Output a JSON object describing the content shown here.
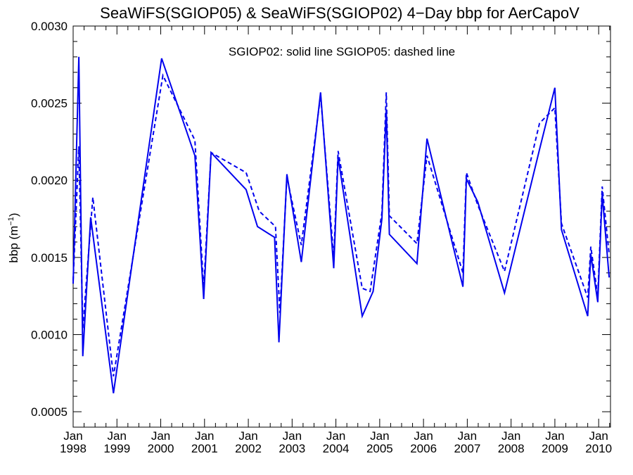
{
  "chart_data": {
    "type": "line",
    "title": "SeaWiFS(SGIOP05) & SeaWiFS(SGIOP02) 4−Day bbp for AerCapoV",
    "ylabel_main": "bbp (m",
    "ylabel_sup": "−1",
    "ylabel_close": ")",
    "annotation": "SGIOP02: solid line   SGIOP05: dashed line",
    "xlim": [
      1998.0,
      2010.27
    ],
    "ylim": [
      0.0004,
      0.003
    ],
    "yticks": [
      0.0005,
      0.001,
      0.0015,
      0.002,
      0.0025,
      0.003
    ],
    "ytick_labels": [
      "0.0005",
      "0.0010",
      "0.0015",
      "0.0020",
      "0.0025",
      "0.0030"
    ],
    "xticks": [
      1998,
      1999,
      2000,
      2001,
      2002,
      2003,
      2004,
      2005,
      2006,
      2007,
      2008,
      2009,
      2010
    ],
    "xtick_month": "Jan",
    "xtick_years": [
      "1998",
      "1999",
      "2000",
      "2001",
      "2002",
      "2003",
      "2004",
      "2005",
      "2006",
      "2007",
      "2008",
      "2009",
      "2010"
    ],
    "grid": false,
    "series": [
      {
        "style": "solid",
        "color": "#0000ee",
        "points": [
          [
            1998.0,
            0.00133
          ],
          [
            1998.13,
            0.0028
          ],
          [
            1998.22,
            0.00086
          ],
          [
            1998.4,
            0.00176
          ],
          [
            1998.92,
            0.00062
          ],
          [
            2000.02,
            0.00279
          ],
          [
            2000.78,
            0.00216
          ],
          [
            2000.98,
            0.00123
          ],
          [
            2001.15,
            0.00218
          ],
          [
            2001.95,
            0.00194
          ],
          [
            2002.21,
            0.0017
          ],
          [
            2002.6,
            0.00163
          ],
          [
            2002.7,
            0.00095
          ],
          [
            2002.88,
            0.00204
          ],
          [
            2003.21,
            0.00147
          ],
          [
            2003.65,
            0.00257
          ],
          [
            2003.95,
            0.00143
          ],
          [
            2004.05,
            0.00215
          ],
          [
            2004.6,
            0.00112
          ],
          [
            2004.85,
            0.00128
          ],
          [
            2005.05,
            0.00175
          ],
          [
            2005.15,
            0.00246
          ],
          [
            2005.22,
            0.00165
          ],
          [
            2005.85,
            0.00146
          ],
          [
            2006.08,
            0.00227
          ],
          [
            2006.9,
            0.00131
          ],
          [
            2006.98,
            0.00201
          ],
          [
            2007.24,
            0.00186
          ],
          [
            2007.85,
            0.00127
          ],
          [
            2008.65,
            0.0022
          ],
          [
            2009.0,
            0.0026
          ],
          [
            2009.15,
            0.00168
          ],
          [
            2009.75,
            0.00112
          ],
          [
            2009.82,
            0.00152
          ],
          [
            2009.98,
            0.00121
          ],
          [
            2010.08,
            0.00191
          ],
          [
            2010.24,
            0.00137
          ]
        ]
      },
      {
        "style": "dashed",
        "color": "#0000ee",
        "points": [
          [
            1998.0,
            0.00135
          ],
          [
            1998.13,
            0.00222
          ],
          [
            1998.22,
            0.00104
          ],
          [
            1998.45,
            0.00189
          ],
          [
            1998.92,
            0.00073
          ],
          [
            2000.05,
            0.00268
          ],
          [
            2000.78,
            0.00226
          ],
          [
            2000.98,
            0.0013
          ],
          [
            2001.15,
            0.00218
          ],
          [
            2001.95,
            0.00205
          ],
          [
            2002.25,
            0.0018
          ],
          [
            2002.62,
            0.0017
          ],
          [
            2002.72,
            0.00114
          ],
          [
            2002.88,
            0.00202
          ],
          [
            2003.21,
            0.00158
          ],
          [
            2003.65,
            0.00255
          ],
          [
            2003.95,
            0.0015
          ],
          [
            2004.05,
            0.00219
          ],
          [
            2004.6,
            0.0013
          ],
          [
            2004.78,
            0.00128
          ],
          [
            2005.05,
            0.00179
          ],
          [
            2005.15,
            0.00257
          ],
          [
            2005.22,
            0.00177
          ],
          [
            2005.85,
            0.00159
          ],
          [
            2006.08,
            0.00216
          ],
          [
            2006.9,
            0.0014
          ],
          [
            2006.98,
            0.00205
          ],
          [
            2007.24,
            0.00184
          ],
          [
            2007.85,
            0.00141
          ],
          [
            2008.65,
            0.00237
          ],
          [
            2009.0,
            0.00247
          ],
          [
            2009.15,
            0.00172
          ],
          [
            2009.75,
            0.00124
          ],
          [
            2009.82,
            0.00157
          ],
          [
            2009.98,
            0.00125
          ],
          [
            2010.08,
            0.00196
          ],
          [
            2010.24,
            0.00152
          ]
        ]
      }
    ]
  }
}
